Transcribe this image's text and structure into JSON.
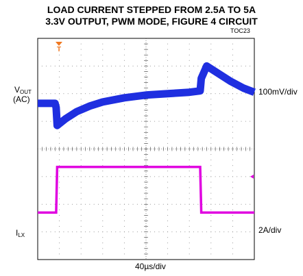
{
  "chart_data": {
    "type": "line",
    "title": "LOAD CURRENT STEPPED FROM 2.5A TO 5A",
    "subtitle": "3.3V OUTPUT, PWM MODE, FIGURE 4 CIRCUIT",
    "figure_id": "TOC23",
    "xlabel": "40µs/div",
    "x_divisions": 10,
    "y_divisions": 8,
    "grid": true,
    "colors": {
      "vout": "#1f2fe0",
      "ilx": "#e000e0",
      "marker": "#f07820"
    },
    "trigger_marker": "T",
    "traces": [
      {
        "name_main": "V",
        "name_sub": "OUT",
        "coupling": "(AC)",
        "scale": "100mV/div",
        "x_div": [
          0,
          0.8,
          0.85,
          0.9,
          1.3,
          1.8,
          2.4,
          3.0,
          4.0,
          5.0,
          6.0,
          7.0,
          7.5,
          7.55,
          7.8,
          8.3,
          8.9,
          9.5,
          10.0
        ],
        "y_div": [
          1.65,
          1.65,
          1.5,
          0.85,
          1.1,
          1.35,
          1.55,
          1.7,
          1.85,
          1.95,
          2.0,
          2.05,
          2.1,
          2.55,
          3.0,
          2.75,
          2.45,
          2.2,
          2.05
        ]
      },
      {
        "name_main": "I",
        "name_sub": "LX",
        "scale": "2A/div",
        "x_div": [
          0,
          0.85,
          0.9,
          7.5,
          7.55,
          10.0
        ],
        "y_div": [
          -2.3,
          -2.3,
          -0.65,
          -0.65,
          -2.3,
          -2.3
        ]
      }
    ],
    "reference_marker": {
      "trace": 1,
      "y_div": -1.0
    }
  }
}
